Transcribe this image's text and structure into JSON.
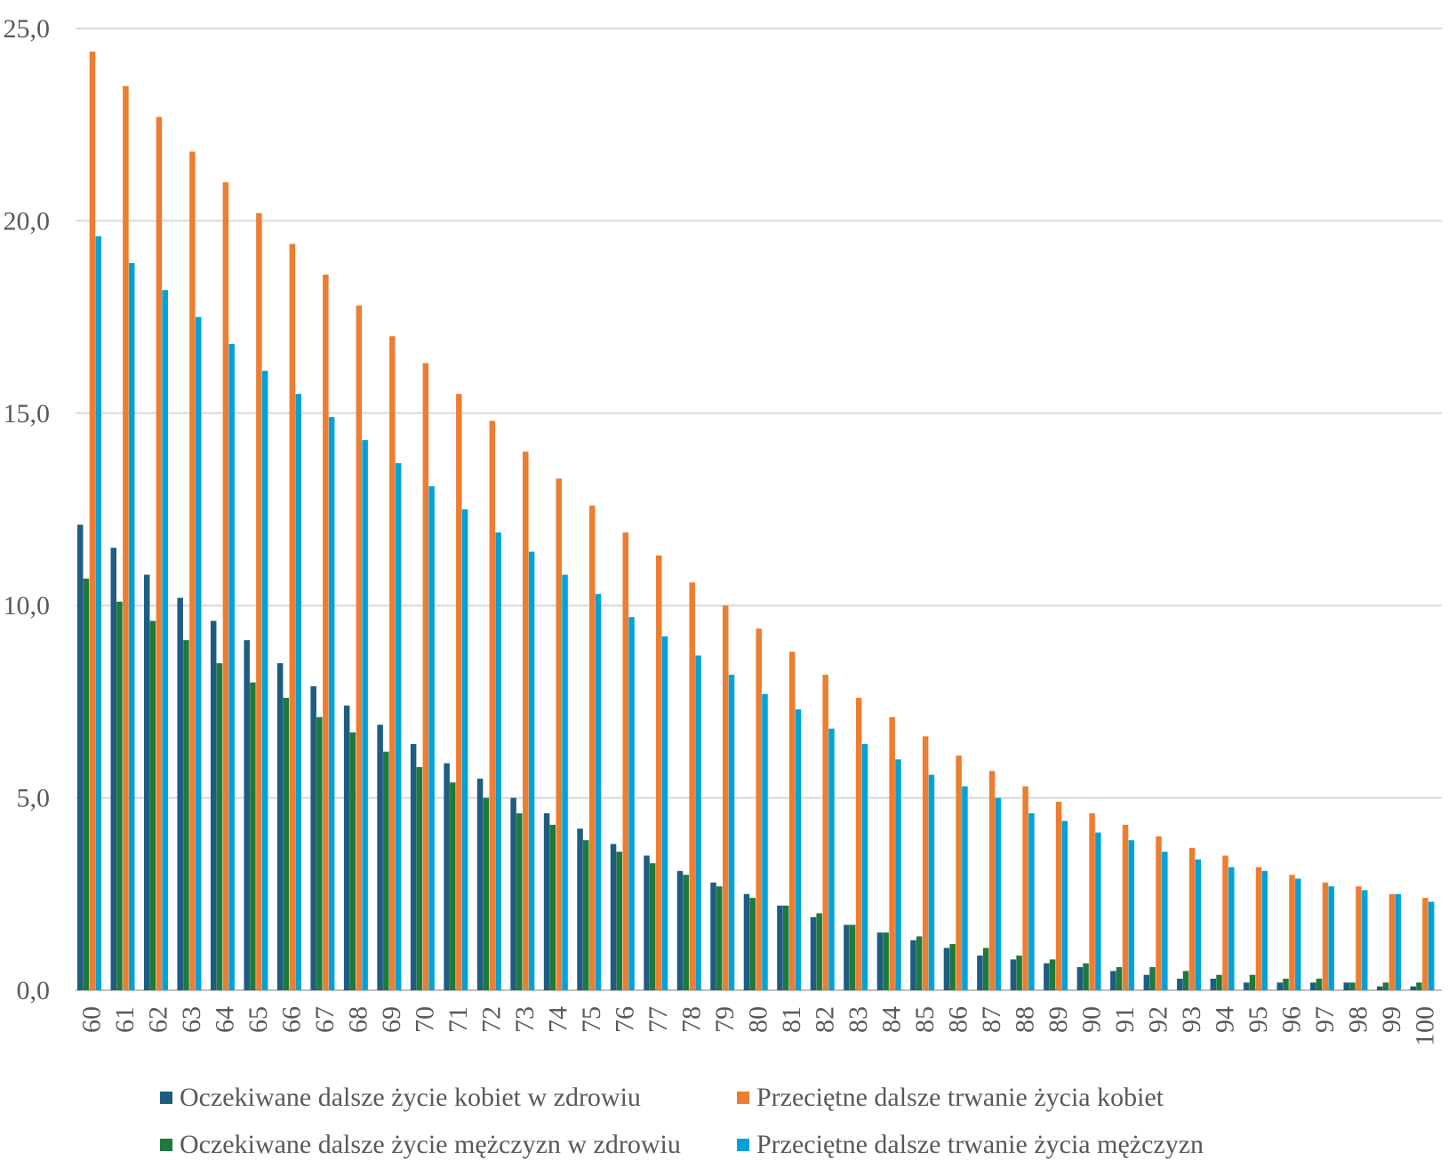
{
  "chart_data": {
    "type": "bar",
    "categories": [
      "60",
      "61",
      "62",
      "63",
      "64",
      "65",
      "66",
      "67",
      "68",
      "69",
      "70",
      "71",
      "72",
      "73",
      "74",
      "75",
      "76",
      "77",
      "78",
      "79",
      "80",
      "81",
      "82",
      "83",
      "84",
      "85",
      "86",
      "87",
      "88",
      "89",
      "90",
      "91",
      "92",
      "93",
      "94",
      "95",
      "96",
      "97",
      "98",
      "99",
      "100"
    ],
    "series": [
      {
        "name": "Oczekiwane dalsze życie kobiet w zdrowiu",
        "color": "#1f5c82",
        "values": [
          12.1,
          11.5,
          10.8,
          10.2,
          9.6,
          9.1,
          8.5,
          7.9,
          7.4,
          6.9,
          6.4,
          5.9,
          5.5,
          5.0,
          4.6,
          4.2,
          3.8,
          3.5,
          3.1,
          2.8,
          2.5,
          2.2,
          1.9,
          1.7,
          1.5,
          1.3,
          1.1,
          0.9,
          0.8,
          0.7,
          0.6,
          0.5,
          0.4,
          0.3,
          0.3,
          0.2,
          0.2,
          0.2,
          0.2,
          0.1,
          0.1
        ]
      },
      {
        "name": "Oczekiwane dalsze życie mężczyzn w zdrowiu",
        "color": "#1e7a3a",
        "values": [
          10.7,
          10.1,
          9.6,
          9.1,
          8.5,
          8.0,
          7.6,
          7.1,
          6.7,
          6.2,
          5.8,
          5.4,
          5.0,
          4.6,
          4.3,
          3.9,
          3.6,
          3.3,
          3.0,
          2.7,
          2.4,
          2.2,
          2.0,
          1.7,
          1.5,
          1.4,
          1.2,
          1.1,
          0.9,
          0.8,
          0.7,
          0.6,
          0.6,
          0.5,
          0.4,
          0.4,
          0.3,
          0.3,
          0.2,
          0.2,
          0.2
        ]
      },
      {
        "name": "Przeciętne dalsze trwanie życia kobiet",
        "color": "#ed7d31",
        "values": [
          24.4,
          23.5,
          22.7,
          21.8,
          21.0,
          20.2,
          19.4,
          18.6,
          17.8,
          17.0,
          16.3,
          15.5,
          14.8,
          14.0,
          13.3,
          12.6,
          11.9,
          11.3,
          10.6,
          10.0,
          9.4,
          8.8,
          8.2,
          7.6,
          7.1,
          6.6,
          6.1,
          5.7,
          5.3,
          4.9,
          4.6,
          4.3,
          4.0,
          3.7,
          3.5,
          3.2,
          3.0,
          2.8,
          2.7,
          2.5,
          2.4
        ]
      },
      {
        "name": "Przeciętne dalsze trwanie życia mężczyzn",
        "color": "#00a2d8",
        "values": [
          19.6,
          18.9,
          18.2,
          17.5,
          16.8,
          16.1,
          15.5,
          14.9,
          14.3,
          13.7,
          13.1,
          12.5,
          11.9,
          11.4,
          10.8,
          10.3,
          9.7,
          9.2,
          8.7,
          8.2,
          7.7,
          7.3,
          6.8,
          6.4,
          6.0,
          5.6,
          5.3,
          5.0,
          4.6,
          4.4,
          4.1,
          3.9,
          3.6,
          3.4,
          3.2,
          3.1,
          2.9,
          2.7,
          2.6,
          2.5,
          2.3
        ]
      }
    ],
    "y_ticks": [
      "0,0",
      "5,0",
      "10,0",
      "15,0",
      "20,0",
      "25,0"
    ],
    "ylim": [
      0,
      25
    ],
    "grid": true,
    "gridline_color": "#d9d9d9",
    "title": "",
    "xlabel": "",
    "ylabel": "",
    "legend_position": "bottom"
  }
}
